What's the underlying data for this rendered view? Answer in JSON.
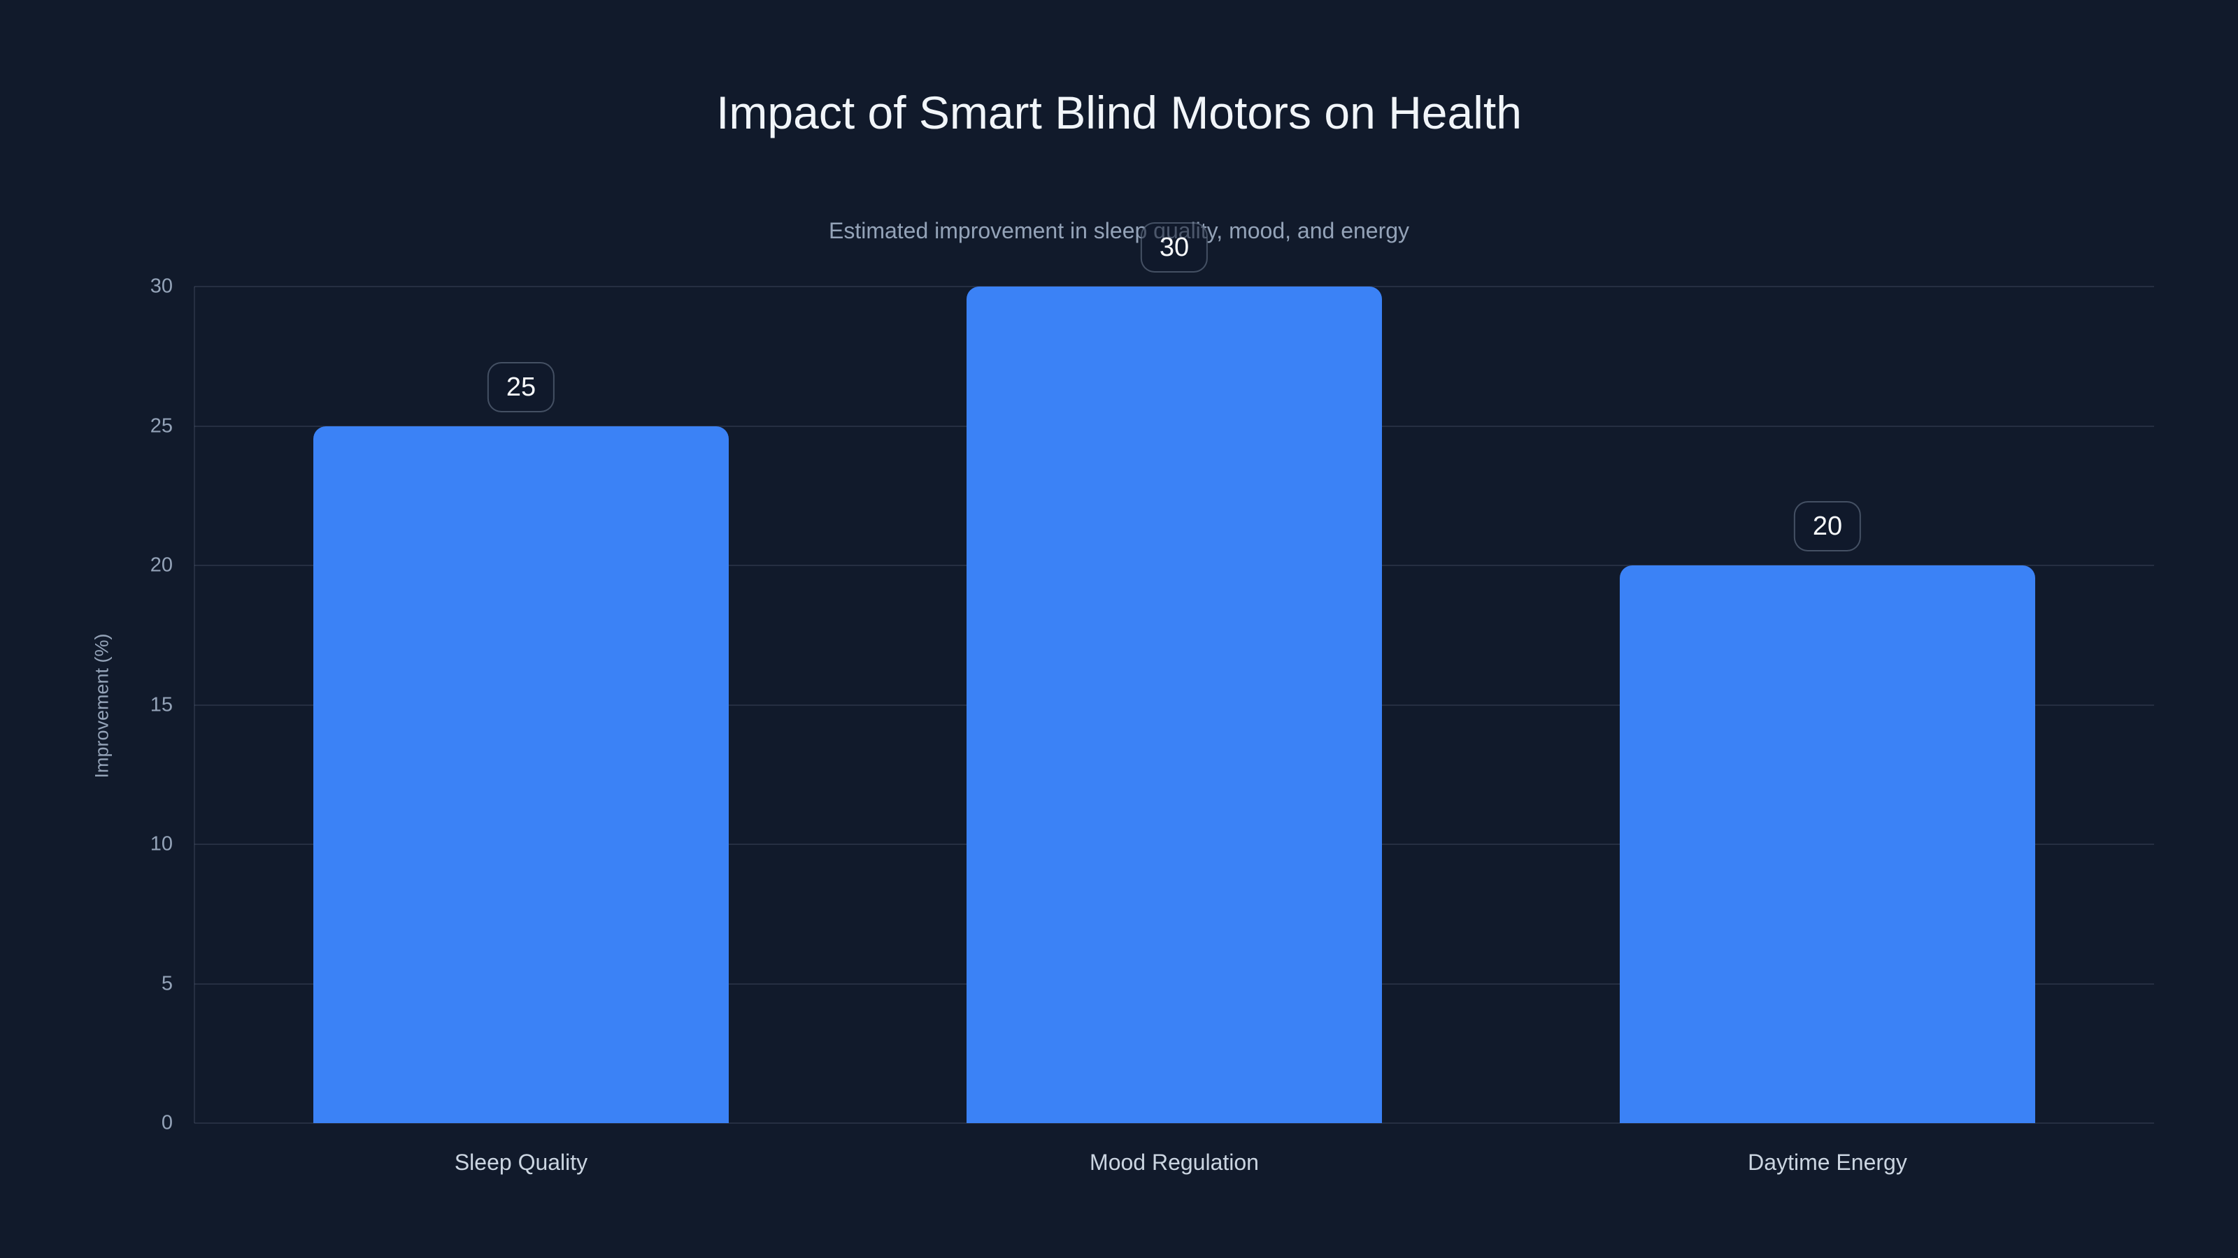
{
  "chart_data": {
    "type": "bar",
    "title": "Impact of Smart Blind Motors on Health",
    "subtitle": "Estimated improvement in sleep quality, mood, and energy",
    "categories": [
      "Sleep Quality",
      "Mood Regulation",
      "Daytime Energy"
    ],
    "values": [
      25,
      30,
      20
    ],
    "value_labels": [
      "25",
      "30",
      "20"
    ],
    "xlabel": "",
    "ylabel": "Improvement (%)",
    "ylim": [
      0,
      30
    ],
    "yticks": [
      0,
      5,
      10,
      15,
      20,
      25,
      30
    ],
    "grid": true,
    "legend": false,
    "legend_position": "none",
    "colors": {
      "background": "#111a2b",
      "bar": "#3b82f6",
      "title_text": "#f1f5f9",
      "subtitle_text": "#94a3b8",
      "tick_text": "#94a3b8",
      "category_text": "#cbd5e1",
      "gridline": "rgba(148,163,184,0.16)",
      "badge_border": "rgba(148,163,184,0.4)",
      "badge_fill": "rgba(17,26,43,0.55)",
      "badge_text": "#f8fafc"
    }
  }
}
